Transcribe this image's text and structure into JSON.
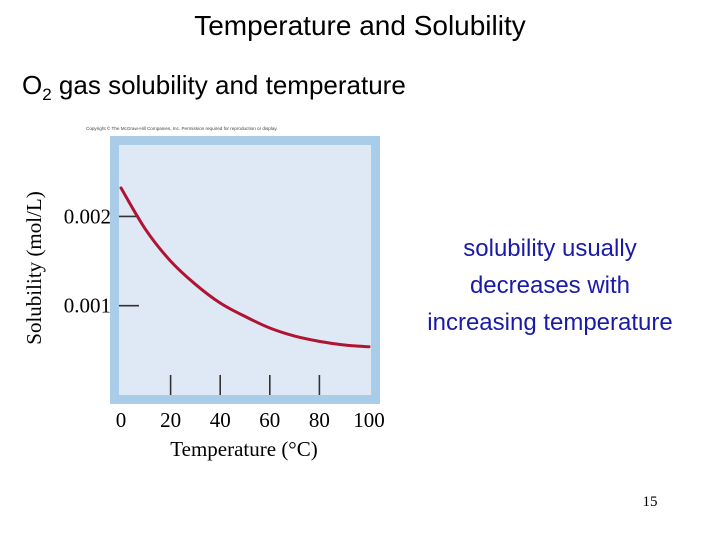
{
  "slide": {
    "title": "Temperature and Solubility",
    "subtitle_prefix": "O",
    "subtitle_subscript": "2",
    "subtitle_suffix": " gas solubility and temperature",
    "callout_lines": [
      "solubility usually",
      "decreases with",
      "increasing temperature"
    ],
    "copyright": "Copyright © The McGraw-Hill Companies, Inc. Permission required for reproduction or display.",
    "page_number": "15"
  },
  "chart_data": {
    "type": "line",
    "title": "",
    "xlabel": "Temperature (°C)",
    "ylabel": "Solubility (mol/L)",
    "xlim": [
      0,
      100
    ],
    "ylim": [
      0,
      0.0028
    ],
    "x_ticks": [
      0,
      20,
      40,
      60,
      80,
      100
    ],
    "x_tick_labels": [
      "0",
      "20",
      "40",
      "60",
      "80",
      "100"
    ],
    "y_ticks": [
      0.001,
      0.002
    ],
    "y_tick_labels": [
      "0.001",
      "0.002"
    ],
    "grid": false,
    "series": [
      {
        "color": "#b01432",
        "x": [
          0,
          10,
          20,
          30,
          40,
          50,
          60,
          70,
          80,
          90,
          100
        ],
        "y": [
          0.00232,
          0.00185,
          0.0015,
          0.00124,
          0.00103,
          0.00088,
          0.00075,
          0.00066,
          0.0006,
          0.00056,
          0.00054
        ]
      }
    ],
    "colors": {
      "plot_background": "#dfe9f5",
      "frame": "#a9cce8",
      "line": "#b01432"
    }
  }
}
